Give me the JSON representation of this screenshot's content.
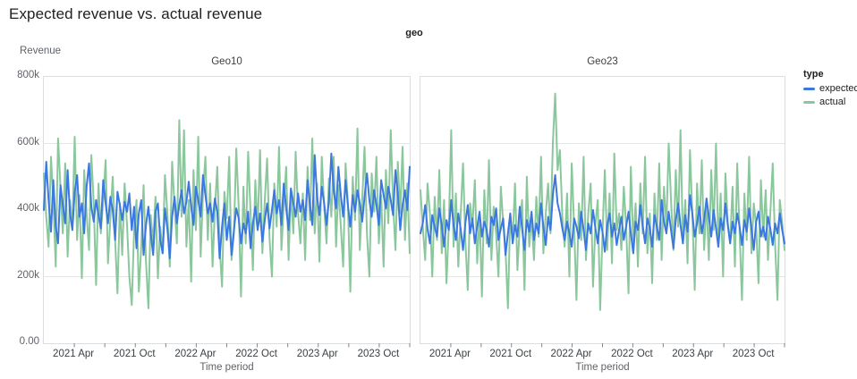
{
  "title": "Expected revenue vs. actual revenue",
  "chart_data": {
    "type": "line",
    "title": "Expected revenue vs. actual revenue",
    "facet_field": "geo",
    "xlabel": "Time period",
    "ylabel": "Revenue",
    "legend_title": "type",
    "legend_position": "right",
    "grid": true,
    "value_unit": "thousands",
    "ylim_thousands": [
      0,
      800
    ],
    "x_domain": [
      "2021-01",
      "2023-12"
    ],
    "x_frequency": "weekly",
    "y_ticks": [
      {
        "value": 800,
        "label": "800k"
      },
      {
        "value": 600,
        "label": "600k"
      },
      {
        "value": 400,
        "label": "400k"
      },
      {
        "value": 200,
        "label": "200k"
      },
      {
        "value": 0,
        "label": "0.00"
      }
    ],
    "y_gridlines": [
      200,
      400,
      600
    ],
    "x_ticks": [
      {
        "month": 3,
        "label": "2021 Apr"
      },
      {
        "month": 6,
        "label": ""
      },
      {
        "month": 9,
        "label": "2021 Oct"
      },
      {
        "month": 12,
        "label": ""
      },
      {
        "month": 15,
        "label": "2022 Apr"
      },
      {
        "month": 18,
        "label": ""
      },
      {
        "month": 21,
        "label": "2022 Oct"
      },
      {
        "month": 24,
        "label": ""
      },
      {
        "month": 27,
        "label": "2023 Apr"
      },
      {
        "month": 30,
        "label": ""
      },
      {
        "month": 33,
        "label": "2023 Oct"
      },
      {
        "month": 36,
        "label": ""
      }
    ],
    "x_months_total": 36,
    "colors": {
      "expected": "#3b78e0",
      "actual": "#8bc79d",
      "grid": "#e4e5e6",
      "tick": "#80868b"
    },
    "legend_items": [
      {
        "label": "expected",
        "color": "#3b78e0"
      },
      {
        "label": "actual",
        "color": "#8bc79d"
      }
    ],
    "panels": [
      {
        "name": "Geo10",
        "series": [
          {
            "name": "expected",
            "values_thousands": [
              400,
              545,
              430,
              335,
              490,
              350,
              300,
              475,
              415,
              360,
              520,
              390,
              340,
              455,
              505,
              380,
              420,
              330,
              470,
              540,
              410,
              365,
              430,
              385,
              345,
              490,
              420,
              360,
              440,
              400,
              310,
              455,
              415,
              370,
              425,
              395,
              450,
              340,
              410,
              285,
              390,
              430,
              265,
              355,
              410,
              330,
              265,
              395,
              420,
              310,
              270,
              405,
              345,
              255,
              380,
              440,
              360,
              415,
              460,
              390,
              425,
              485,
              410,
              355,
              470,
              430,
              380,
              505,
              445,
              390,
              420,
              365,
              435,
              395,
              255,
              350,
              420,
              310,
              380,
              265,
              340,
              405,
              375,
              300,
              360,
              330,
              395,
              285,
              360,
              410,
              340,
              390,
              305,
              370,
              420,
              345,
              400,
              460,
              390,
              430,
              355,
              480,
              405,
              340,
              465,
              420,
              380,
              450,
              395,
              430,
              370,
              490,
              415,
              355,
              565,
              440,
              385,
              470,
              420,
              355,
              430,
              570,
              460,
              405,
              530,
              445,
              380,
              490,
              415,
              350,
              445,
              395,
              460,
              420,
              365,
              440,
              510,
              430,
              380,
              460,
              415,
              355,
              490,
              445,
              405,
              470,
              430,
              385,
              520,
              450,
              340,
              415,
              460,
              400,
              530
            ]
          },
          {
            "name": "actual",
            "values_thousands": [
              510,
              380,
              290,
              560,
              430,
              230,
              615,
              470,
              330,
              540,
              260,
              430,
              350,
              620,
              310,
              445,
              195,
              520,
              390,
              280,
              565,
              420,
              175,
              480,
              330,
              430,
              550,
              240,
              375,
              500,
              310,
              150,
              420,
              265,
              480,
              355,
              200,
              115,
              340,
              430,
              155,
              290,
              475,
              245,
              105,
              385,
              300,
              440,
              195,
              350,
              270,
              505,
              390,
              230,
              545,
              415,
              300,
              670,
              380,
              640,
              290,
              430,
              185,
              520,
              340,
              620,
              260,
              450,
              560,
              310,
              480,
              230,
              400,
              530,
              290,
              170,
              455,
              375,
              560,
              250,
              330,
              585,
              410,
              140,
              470,
              300,
              575,
              390,
              220,
              490,
              345,
              580,
              270,
              430,
              555,
              315,
              200,
              480,
              350,
              590,
              280,
              415,
              530,
              250,
              460,
              330,
              575,
              390,
              300,
              450,
              250,
              530,
              370,
              615,
              330,
              480,
              245,
              560,
              410,
              300,
              495,
              380,
              560,
              290,
              475,
              350,
              230,
              540,
              420,
              155,
              500,
              370,
              645,
              280,
              430,
              590,
              330,
              200,
              510,
              395,
              560,
              300,
              445,
              230,
              520,
              360,
              640,
              420,
              280,
              545,
              390,
              590,
              310,
              480,
              270
            ]
          }
        ]
      },
      {
        "name": "Geo23",
        "series": [
          {
            "name": "expected",
            "values_thousands": [
              330,
              360,
              415,
              345,
              300,
              385,
              350,
              320,
              405,
              355,
              290,
              370,
              340,
              430,
              355,
              310,
              390,
              345,
              280,
              360,
              415,
              330,
              375,
              300,
              350,
              395,
              320,
              365,
              340,
              290,
              380,
              355,
              405,
              310,
              345,
              375,
              265,
              330,
              390,
              300,
              355,
              320,
              410,
              345,
              280,
              370,
              335,
              395,
              310,
              360,
              330,
              420,
              350,
              295,
              380,
              340,
              445,
              505,
              420,
              390,
              345,
              310,
              365,
              330,
              290,
              375,
              350,
              315,
              395,
              340,
              280,
              360,
              330,
              400,
              345,
              300,
              370,
              335,
              275,
              355,
              390,
              320,
              360,
              295,
              340,
              380,
              310,
              350,
              395,
              330,
              270,
              365,
              340,
              415,
              355,
              300,
              375,
              345,
              290,
              385,
              350,
              310,
              430,
              365,
              330,
              395,
              340,
              285,
              370,
              420,
              355,
              300,
              385,
              335,
              445,
              390,
              320,
              360,
              410,
              330,
              370,
              435,
              380,
              320,
              400,
              345,
              290,
              375,
              340,
              420,
              355,
              300,
              365,
              330,
              390,
              350,
              295,
              370,
              335,
              405,
              345,
              280,
              365,
              395,
              320,
              350,
              310,
              380,
              345,
              295,
              360,
              330,
              390,
              340,
              300
            ]
          },
          {
            "name": "actual",
            "values_thousands": [
              460,
              350,
              250,
              480,
              390,
              200,
              440,
              310,
              520,
              270,
              430,
              180,
              350,
              640,
              290,
              450,
              230,
              380,
              540,
              310,
              160,
              420,
              350,
              490,
              240,
              390,
              140,
              460,
              300,
              550,
              250,
              410,
              330,
              200,
              470,
              360,
              280,
              105,
              390,
              310,
              480,
              220,
              350,
              430,
              160,
              500,
              290,
              380,
              250,
              440,
              320,
              560,
              270,
              390,
              480,
              330,
              600,
              750,
              520,
              580,
              380,
              290,
              450,
              200,
              540,
              350,
              130,
              420,
              310,
              560,
              250,
              390,
              480,
              170,
              360,
              430,
              100,
              330,
              520,
              280,
              450,
              240,
              570,
              340,
              390,
              280,
              470,
              350,
              150,
              530,
              300,
              420,
              230,
              480,
              330,
              560,
              270,
              390,
              180,
              450,
              310,
              540,
              250,
              470,
              350,
              600,
              430,
              280,
              520,
              350,
              640,
              300,
              430,
              240,
              580,
              390,
              160,
              480,
              330,
              550,
              280,
              430,
              250,
              520,
              340,
              600,
              290,
              450,
              200,
              510,
              360,
              300,
              470,
              230,
              540,
              330,
              130,
              450,
              310,
              560,
              270,
              420,
              350,
              180,
              490,
              320,
              460,
              250,
              390,
              540,
              300,
              130,
              430,
              360,
              280
            ]
          }
        ]
      }
    ]
  }
}
